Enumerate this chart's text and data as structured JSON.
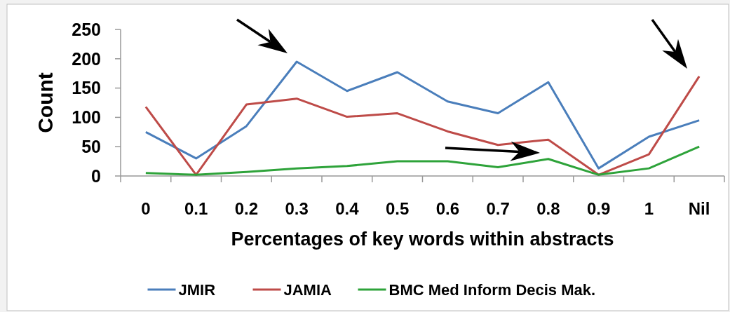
{
  "chart_data": {
    "type": "line",
    "xlabel": "Percentages of key words within abstracts",
    "ylabel": "Count",
    "categories": [
      "0",
      "0.1",
      "0.2",
      "0.3",
      "0.4",
      "0.5",
      "0.6",
      "0.7",
      "0.8",
      "0.9",
      "1",
      "Nil"
    ],
    "series": [
      {
        "name": "JMIR",
        "color": "#4a7ebb",
        "values": [
          75,
          30,
          85,
          195,
          145,
          177,
          127,
          107,
          160,
          13,
          67,
          95
        ]
      },
      {
        "name": "JAMIA",
        "color": "#be4b48",
        "values": [
          118,
          2,
          122,
          132,
          101,
          107,
          76,
          53,
          62,
          2,
          37,
          170
        ]
      },
      {
        "name": "BMC Med Inform Decis Mak.",
        "color": "#2ea33a",
        "values": [
          5,
          2,
          7,
          13,
          17,
          25,
          25,
          15,
          29,
          2,
          13,
          50
        ]
      }
    ],
    "ylim": [
      0,
      250
    ],
    "yticks": [
      0,
      50,
      100,
      150,
      200,
      250
    ],
    "grid": false,
    "legend": "bottom",
    "marker": "none",
    "line_style": "solid"
  }
}
